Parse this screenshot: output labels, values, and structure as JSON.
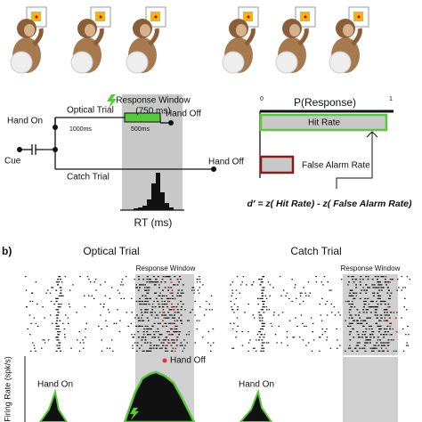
{
  "panel_a": {
    "schematic": {
      "hand_on": "Hand On",
      "cue": "Cue",
      "optical_trial": "Optical Trial",
      "duration_1": "1000ms",
      "duration_2": "500ms",
      "response_window": "Response Window",
      "response_window_length": "(750 ms)",
      "hand_off_optical": "Hand Off",
      "catch_trial": "Catch Trial",
      "hand_off_catch": "Hand Off",
      "rt_label": "RT (ms)"
    },
    "response_plot": {
      "axis_start": "0",
      "axis_label": "P(Response)",
      "axis_end": "1",
      "hit_rate": "Hit Rate",
      "false_alarm_rate": "False Alarm Rate",
      "formula": "d′ = z( Hit Rate) - z( False Alarm Rate)"
    }
  },
  "panel_b": {
    "label": "b)",
    "optical_title": "Optical Trial",
    "catch_title": "Catch Trial",
    "optical_window": "Response Window",
    "catch_window": "Response Window",
    "hand_off": "Hand Off",
    "y_label": "Firing Rate (spk/s)",
    "optical_hand_on": "Hand On",
    "catch_hand_on": "Hand On"
  }
}
